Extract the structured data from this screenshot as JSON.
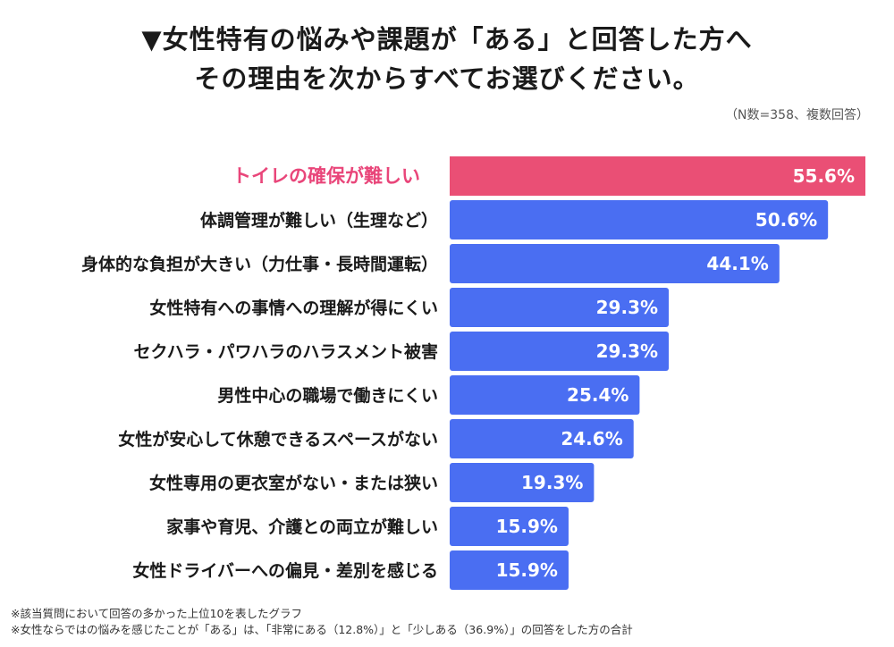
{
  "title": {
    "line1": "▼女性特有の悩みや課題が「ある」と回答した方へ",
    "line2": "その理由を次からすべてお選びください。"
  },
  "note": "（N数=358、複数回答）",
  "footnotes": {
    "line1": "※該当質問において回答の多かった上位10を表したグラフ",
    "line2": "※女性ならではの悩みを感じたことが「ある」は、「非常にある（12.8%）」と「少しある（36.9%）」の回答をした方の合計"
  },
  "colors": {
    "highlight": "#ea4f75",
    "bar": "#4a6ef2",
    "highlight_text": "#e9467a",
    "label_text": "#1a1a1a",
    "value_text": "#ffffff"
  },
  "chart_data": {
    "type": "bar",
    "orientation": "horizontal",
    "value_format": "percent",
    "categories": [
      "トイレの確保が難しい",
      "体調管理が難しい（生理など）",
      "身体的な負担が大きい（力仕事・長時間運転）",
      "女性特有への事情への理解が得にくい",
      "セクハラ・パワハラのハラスメント被害",
      "男性中心の職場で働きにくい",
      "女性が安心して休憩できるスペースがない",
      "女性専用の更衣室がない・または狭い",
      "家事や育児、介護との両立が難しい",
      "女性ドライバーへの偏見・差別を感じる"
    ],
    "values": [
      55.6,
      50.6,
      44.1,
      29.3,
      29.3,
      25.4,
      24.6,
      19.3,
      15.9,
      15.9
    ],
    "highlight_index": 0,
    "xlim": [
      0,
      55.6
    ]
  }
}
